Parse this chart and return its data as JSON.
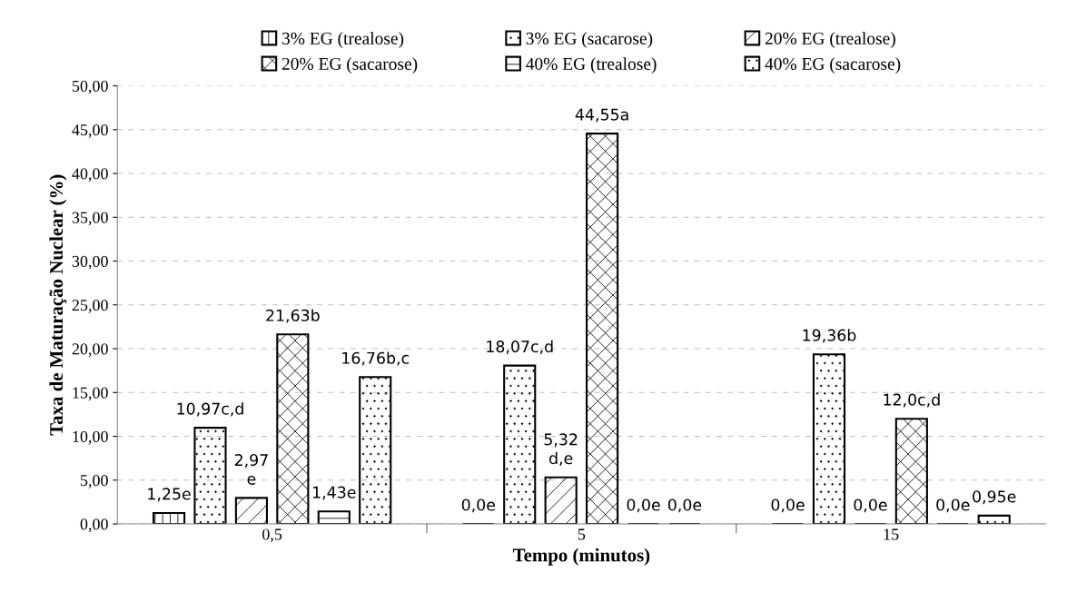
{
  "chart_data": {
    "type": "bar",
    "xlabel": "Tempo (minutos)",
    "ylabel": "Taxa de Maturação Nuclear (%)",
    "categories": [
      "0,5",
      "5",
      "15"
    ],
    "series": [
      {
        "name": "3% EG (trealose)",
        "color": "#000000",
        "values": [
          1.25,
          0,
          0
        ],
        "value_labels": [
          "1,25e",
          "0,0e",
          "0,0e"
        ]
      },
      {
        "name": "3% EG (sacarose)",
        "color": "#000000",
        "values": [
          10.97,
          18.07,
          19.36
        ],
        "value_labels": [
          "10,97c,d",
          "18,07c,d",
          "19,36b"
        ]
      },
      {
        "name": "20% EG (trealose)",
        "color": "#000000",
        "values": [
          2.97,
          5.32,
          0
        ],
        "value_labels": [
          "2,97\ne",
          "5,32\nd,e",
          "0,0e"
        ]
      },
      {
        "name": "20% EG (sacarose)",
        "color": "#000000",
        "values": [
          21.63,
          44.55,
          12.0
        ],
        "value_labels": [
          "21,63b",
          "44,55a",
          "12,0c,d"
        ]
      },
      {
        "name": "40% EG (trealose)",
        "color": "#000000",
        "values": [
          1.43,
          0,
          0
        ],
        "value_labels": [
          "1,43e",
          "0,0e",
          "0,0e"
        ]
      },
      {
        "name": "40% EG (sacarose)",
        "color": "#000000",
        "values": [
          16.76,
          0,
          0.95
        ],
        "value_labels": [
          "16,76b,c",
          "0,0e",
          "0,95e"
        ]
      }
    ],
    "ylim": [
      0,
      50
    ],
    "yticks": [
      {
        "value": 0,
        "label": "0,00"
      },
      {
        "value": 5,
        "label": "5,00"
      },
      {
        "value": 10,
        "label": "10,00"
      },
      {
        "value": 15,
        "label": "15,00"
      },
      {
        "value": 20,
        "label": "20,00"
      },
      {
        "value": 25,
        "label": "25,00"
      },
      {
        "value": 30,
        "label": "30,00"
      },
      {
        "value": 35,
        "label": "35,00"
      },
      {
        "value": 40,
        "label": "40,00"
      },
      {
        "value": 45,
        "label": "45,00"
      },
      {
        "value": 50,
        "label": "50,00"
      }
    ],
    "grid": "y",
    "legend": "top"
  }
}
